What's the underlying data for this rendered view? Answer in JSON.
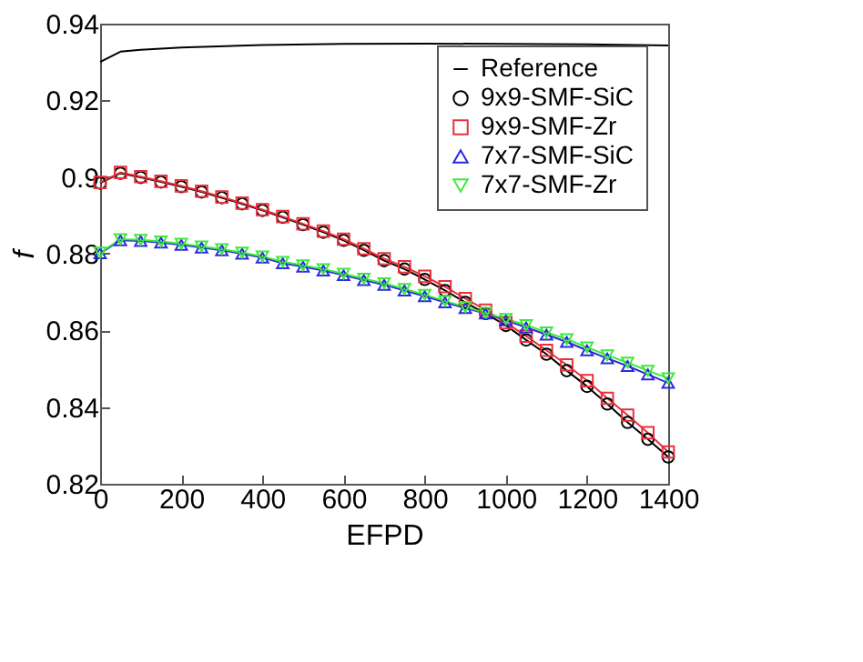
{
  "chart_data": {
    "type": "line",
    "xlabel": "EFPD",
    "ylabel": "f",
    "xlim": [
      0,
      1400
    ],
    "ylim": [
      0.82,
      0.94
    ],
    "xticks": [
      0,
      200,
      400,
      600,
      800,
      1000,
      1200,
      1400
    ],
    "yticks": [
      0.82,
      0.84,
      0.86,
      0.88,
      0.9,
      0.92,
      0.94
    ],
    "grid": false,
    "legend": "top right",
    "x": [
      0,
      50,
      100,
      150,
      200,
      250,
      300,
      350,
      400,
      450,
      500,
      550,
      600,
      650,
      700,
      750,
      800,
      850,
      900,
      950,
      1000,
      1050,
      1100,
      1150,
      1200,
      1250,
      1300,
      1350,
      1400
    ],
    "series": [
      {
        "name": "Reference",
        "color": "#000000",
        "marker": "none",
        "x": [
          0,
          50,
          100,
          200,
          400,
          600,
          800,
          1000,
          1200,
          1400
        ],
        "values": [
          0.93,
          0.9327,
          0.9332,
          0.9338,
          0.9344,
          0.9347,
          0.9348,
          0.9347,
          0.9346,
          0.9343
        ]
      },
      {
        "name": "9x9-SMF-SiC",
        "color": "#000000",
        "marker": "circle",
        "values": [
          0.8984,
          0.901,
          0.8999,
          0.8987,
          0.8975,
          0.8961,
          0.8946,
          0.893,
          0.8913,
          0.8895,
          0.8876,
          0.8856,
          0.8835,
          0.8809,
          0.8782,
          0.876,
          0.8733,
          0.8704,
          0.8673,
          0.8644,
          0.8613,
          0.8575,
          0.8538,
          0.8495,
          0.8454,
          0.8408,
          0.836,
          0.8316,
          0.827
        ]
      },
      {
        "name": "9x9-SMF-Zr",
        "color": "#e8303a",
        "marker": "square",
        "values": [
          0.8986,
          0.9012,
          0.9001,
          0.8989,
          0.8977,
          0.8963,
          0.8948,
          0.8932,
          0.8915,
          0.8897,
          0.8878,
          0.8859,
          0.8838,
          0.8813,
          0.8787,
          0.8766,
          0.8741,
          0.8714,
          0.8683,
          0.8653,
          0.862,
          0.8585,
          0.8548,
          0.851,
          0.8469,
          0.8423,
          0.8379,
          0.8333,
          0.8283
        ]
      },
      {
        "name": "7x7-SMF-SiC",
        "color": "#2a2ae0",
        "marker": "triangle",
        "values": [
          0.8801,
          0.8835,
          0.8833,
          0.8829,
          0.8823,
          0.8816,
          0.8809,
          0.88,
          0.879,
          0.8775,
          0.8766,
          0.8756,
          0.8744,
          0.8731,
          0.8719,
          0.8704,
          0.8689,
          0.8673,
          0.8658,
          0.8644,
          0.8626,
          0.8608,
          0.8589,
          0.857,
          0.8548,
          0.8527,
          0.8507,
          0.8485,
          0.8463
        ]
      },
      {
        "name": "7x7-SMF-Zr",
        "color": "#3ee83e",
        "marker": "triangle-down",
        "values": [
          0.8803,
          0.8838,
          0.8836,
          0.8832,
          0.8826,
          0.8819,
          0.8812,
          0.8803,
          0.8793,
          0.8779,
          0.877,
          0.876,
          0.8748,
          0.8735,
          0.8723,
          0.8708,
          0.8693,
          0.8677,
          0.8661,
          0.8646,
          0.863,
          0.8614,
          0.8595,
          0.8577,
          0.8556,
          0.8535,
          0.8516,
          0.8495,
          0.8475
        ]
      }
    ]
  }
}
